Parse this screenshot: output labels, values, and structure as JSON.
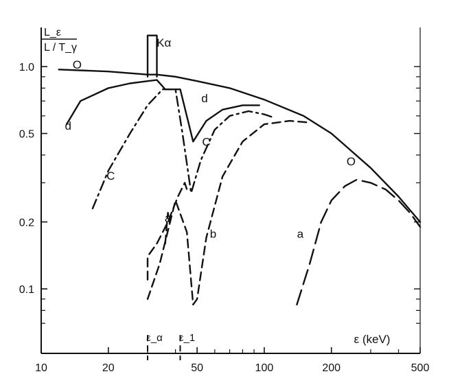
{
  "chart_data": {
    "type": "line",
    "title": "",
    "xlabel": "ε (keV)",
    "ylabel": "L_ε / (L/T_γ)",
    "xscale": "log",
    "yscale": "log",
    "xlim": [
      10,
      500
    ],
    "ylim": [
      0.05,
      1.5
    ],
    "x_ticks": [
      10,
      20,
      50,
      100,
      200,
      500
    ],
    "x_tick_labels": [
      "10",
      "20",
      "50",
      "100",
      "200",
      "500"
    ],
    "y_ticks": [
      0.1,
      0.2,
      0.5,
      1.0
    ],
    "y_tick_labels": [
      "0.1",
      "0.2",
      "0.5",
      "1.0"
    ],
    "grid": false,
    "legend": "none",
    "series": [
      {
        "name": "O",
        "style": "solid",
        "x": [
          12,
          20,
          30,
          33,
          40,
          50,
          70,
          100,
          150,
          200,
          300,
          400,
          500
        ],
        "y": [
          0.97,
          0.95,
          0.92,
          0.92,
          0.9,
          0.86,
          0.8,
          0.71,
          0.6,
          0.5,
          0.35,
          0.26,
          0.2
        ]
      },
      {
        "name": "Kα",
        "style": "solid",
        "x": [
          30,
          30,
          33,
          33
        ],
        "y": [
          0.9,
          1.38,
          1.38,
          0.9
        ]
      },
      {
        "name": "d",
        "style": "solid",
        "x": [
          13,
          15,
          20,
          25,
          30,
          33,
          36,
          38,
          40,
          42,
          48,
          55,
          65,
          80,
          95
        ],
        "y": [
          0.55,
          0.7,
          0.8,
          0.84,
          0.86,
          0.87,
          0.79,
          0.79,
          0.79,
          0.79,
          0.46,
          0.57,
          0.64,
          0.67,
          0.67
        ]
      },
      {
        "name": "c",
        "style": "dashdot",
        "x": [
          17,
          20,
          25,
          30,
          35,
          40,
          43,
          47,
          52,
          60,
          70,
          85,
          100,
          110
        ],
        "y": [
          0.23,
          0.34,
          0.5,
          0.67,
          0.79,
          0.79,
          0.5,
          0.27,
          0.38,
          0.52,
          0.6,
          0.63,
          0.61,
          0.59
        ]
      },
      {
        "name": "b",
        "style": "dashed",
        "x": [
          30,
          34,
          40,
          45,
          48,
          50,
          55,
          65,
          80,
          100,
          130,
          160
        ],
        "y": [
          0.09,
          0.13,
          0.25,
          0.18,
          0.085,
          0.09,
          0.17,
          0.32,
          0.46,
          0.55,
          0.57,
          0.56
        ]
      },
      {
        "name": "b (left)",
        "style": "dashed",
        "x": [
          30,
          30,
          33,
          37,
          41,
          44,
          45
        ],
        "y": [
          0.11,
          0.14,
          0.16,
          0.2,
          0.26,
          0.3,
          0.28
        ]
      },
      {
        "name": "a",
        "style": "longdash",
        "x": [
          140,
          160,
          180,
          200,
          230,
          260,
          300,
          350,
          400,
          450,
          500
        ],
        "y": [
          0.085,
          0.13,
          0.2,
          0.25,
          0.29,
          0.31,
          0.3,
          0.28,
          0.25,
          0.22,
          0.19
        ]
      },
      {
        "name": "a (left)",
        "style": "dashed",
        "x": [
          36,
          36.5,
          37,
          37.5
        ],
        "y": [
          0.16,
          0.19,
          0.22,
          0.2
        ]
      }
    ],
    "curve_labels": [
      {
        "text": "O",
        "x": 14.5,
        "y": 0.98
      },
      {
        "text": "d",
        "x": 13.2,
        "y": 0.52
      },
      {
        "text": "C",
        "x": 20.5,
        "y": 0.31
      },
      {
        "text": "Kα",
        "x": 35.5,
        "y": 1.23
      },
      {
        "text": "d",
        "x": 54,
        "y": 0.69
      },
      {
        "text": "C",
        "x": 55,
        "y": 0.44
      },
      {
        "text": "b",
        "x": 59,
        "y": 0.17
      },
      {
        "text": "a",
        "x": 145,
        "y": 0.17
      },
      {
        "text": "O",
        "x": 245,
        "y": 0.36
      },
      {
        "text": "a",
        "x": 37,
        "y": 0.2
      }
    ],
    "markers": [
      {
        "text": "ε_α",
        "x": 30
      },
      {
        "text": "ε_1",
        "x": 42
      }
    ],
    "annotation": {
      "ylabel_top": "L_ε",
      "ylabel_bottom": "L / T_γ"
    }
  }
}
